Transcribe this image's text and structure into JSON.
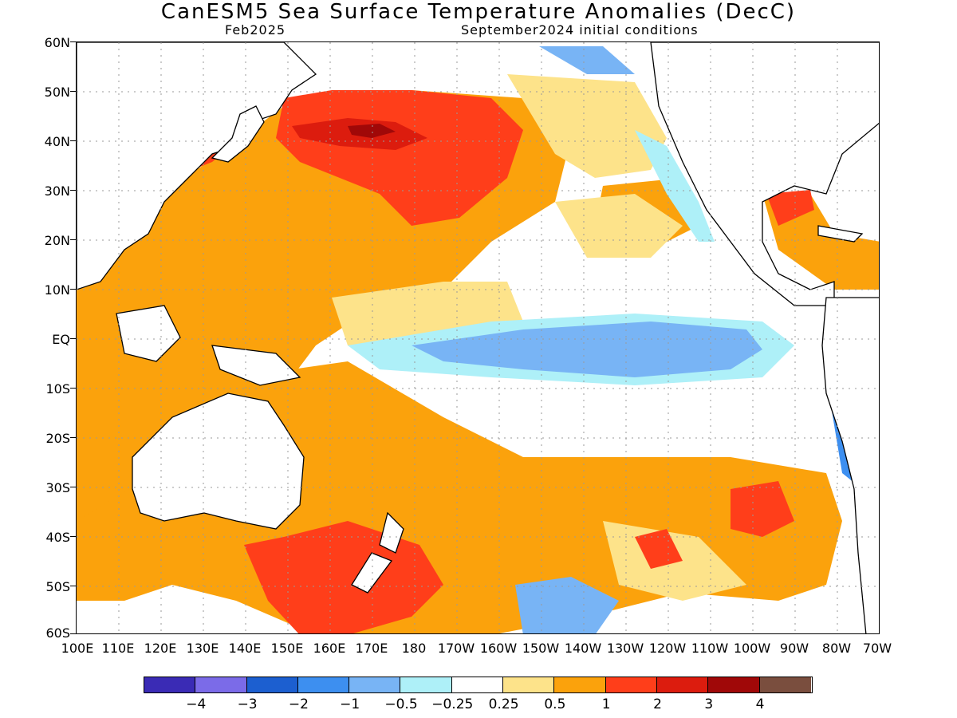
{
  "title": "CanESM5 Sea Surface Temperature Anomalies (DecC)",
  "valid_month": "Feb2025",
  "init_conditions": "September2024 initial conditions",
  "lat_labels": [
    "60N",
    "50N",
    "40N",
    "30N",
    "20N",
    "10N",
    "EQ",
    "10S",
    "20S",
    "30S",
    "40S",
    "50S",
    "60S"
  ],
  "lon_labels": [
    "100E",
    "110E",
    "120E",
    "130E",
    "140E",
    "150E",
    "160E",
    "170E",
    "180",
    "170W",
    "160W",
    "150W",
    "140W",
    "130W",
    "120W",
    "110W",
    "100W",
    "90W",
    "80W",
    "70W"
  ],
  "colorbar": {
    "colors": [
      "#3a2bb5",
      "#7b6be8",
      "#1c5fd0",
      "#3d8ff0",
      "#78b4f5",
      "#aef0f8",
      "#ffffff",
      "#fde38a",
      "#fba20c",
      "#ff3e1a",
      "#dc1c0e",
      "#a00808",
      "#7a4e3e"
    ],
    "labels": [
      "−4",
      "−3",
      "−2",
      "−1",
      "−0.5",
      "−0.25",
      "0.25",
      "0.5",
      "1",
      "2",
      "3",
      "4"
    ]
  },
  "legend": {
    "colors": {
      "land": "#ffffff",
      "coast": "#000000",
      "grid": "#9a9a9a"
    }
  }
}
